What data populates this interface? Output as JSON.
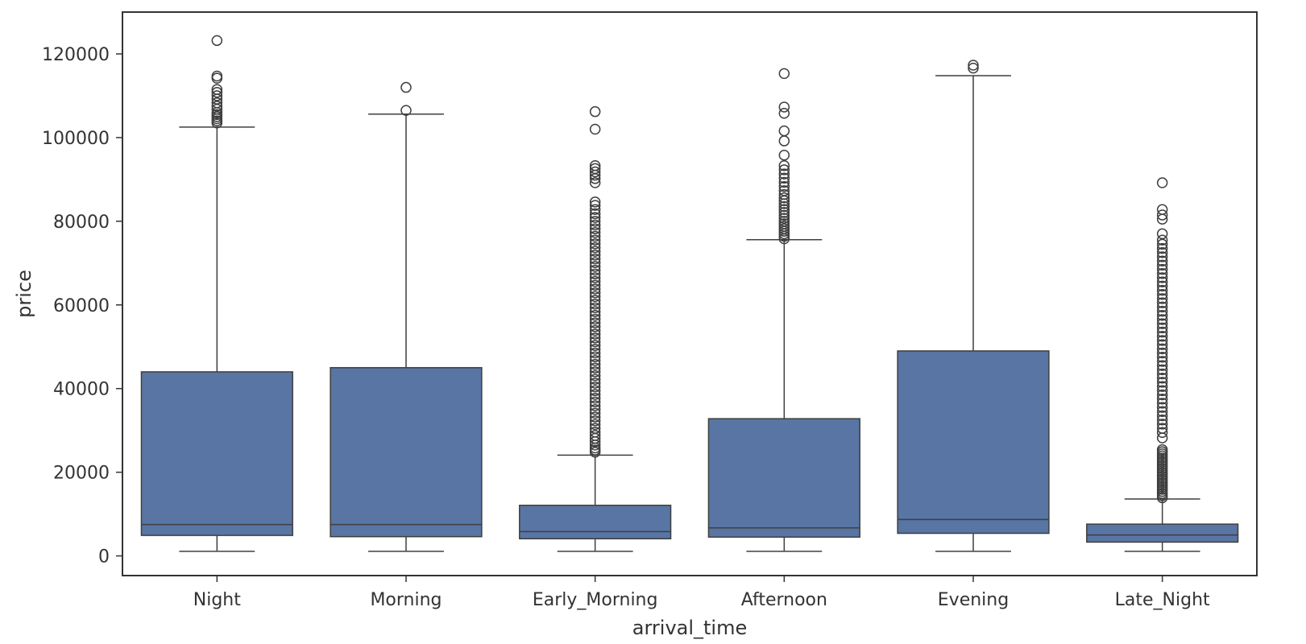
{
  "chart_data": {
    "type": "boxplot",
    "title": "",
    "xlabel": "arrival_time",
    "ylabel": "price",
    "ylim": [
      -4700,
      130000
    ],
    "yticks": [
      0,
      20000,
      40000,
      60000,
      80000,
      100000,
      120000
    ],
    "ytick_labels": [
      "0",
      "20000",
      "40000",
      "60000",
      "80000",
      "100000",
      "120000"
    ],
    "grid": false,
    "legend": "none",
    "colors": {
      "box_fill": "#5875a4",
      "line": "#3f3f3f",
      "frame": "#333333"
    },
    "categories": [
      "Night",
      "Morning",
      "Early_Morning",
      "Afternoon",
      "Evening",
      "Late_Night"
    ],
    "boxes": [
      {
        "category": "Night",
        "whisker_low": 1100,
        "q1": 4900,
        "median": 7500,
        "q3": 44000,
        "whisker_high": 102500,
        "outliers": [
          103500,
          104000,
          104500,
          105000,
          105500,
          106000,
          106800,
          107500,
          108300,
          109200,
          110000,
          110800,
          111500,
          114200,
          114700,
          123200
        ]
      },
      {
        "category": "Morning",
        "whisker_low": 1100,
        "q1": 4600,
        "median": 7500,
        "q3": 45000,
        "whisker_high": 105600,
        "outliers": [
          106500,
          112000
        ]
      },
      {
        "category": "Early_Morning",
        "whisker_low": 1100,
        "q1": 4100,
        "median": 5800,
        "q3": 12100,
        "whisker_high": 24100,
        "outliers": [
          24800,
          25300,
          25800,
          26500,
          27300,
          28100,
          28800,
          29600,
          30500,
          31400,
          32300,
          33200,
          34100,
          35000,
          35900,
          36800,
          37700,
          38600,
          39500,
          40400,
          41300,
          42200,
          43100,
          44000,
          44900,
          45800,
          46700,
          47600,
          48500,
          49400,
          50300,
          51200,
          52100,
          53000,
          53900,
          54800,
          55700,
          56600,
          57500,
          58400,
          59300,
          60200,
          61100,
          62000,
          62900,
          63800,
          64700,
          65600,
          66500,
          67400,
          68300,
          69200,
          70100,
          71000,
          71900,
          72800,
          73700,
          74600,
          75500,
          76400,
          77300,
          78200,
          79100,
          80000,
          80900,
          81800,
          82800,
          83800,
          84600,
          89200,
          90200,
          91000,
          91800,
          92600,
          93300,
          102000,
          106200
        ]
      },
      {
        "category": "Afternoon",
        "whisker_low": 1100,
        "q1": 4500,
        "median": 6700,
        "q3": 32800,
        "whisker_high": 75600,
        "outliers": [
          75800,
          76400,
          77000,
          77600,
          78200,
          78800,
          79400,
          80000,
          80700,
          81400,
          82100,
          82800,
          83500,
          84200,
          84900,
          85600,
          86400,
          87300,
          88300,
          89300,
          90300,
          91300,
          92300,
          93300,
          95800,
          99200,
          101600,
          105800,
          107300,
          115300
        ]
      },
      {
        "category": "Evening",
        "whisker_low": 1100,
        "q1": 5400,
        "median": 8700,
        "q3": 49000,
        "whisker_high": 114800,
        "outliers": [
          116600,
          117300
        ]
      },
      {
        "category": "Late_Night",
        "whisker_low": 1100,
        "q1": 3300,
        "median": 5000,
        "q3": 7600,
        "whisker_high": 13600,
        "outliers": [
          13900,
          14400,
          14900,
          15400,
          15900,
          16400,
          16900,
          17400,
          17900,
          18400,
          18900,
          19400,
          19900,
          20400,
          20900,
          21400,
          21900,
          22400,
          22900,
          23400,
          23900,
          24400,
          24900,
          25400,
          28200,
          29500,
          30500,
          31500,
          32500,
          33500,
          34500,
          35500,
          36500,
          37500,
          38500,
          39500,
          40500,
          41500,
          42500,
          43500,
          44500,
          45500,
          46500,
          47500,
          48500,
          49500,
          50500,
          51500,
          52500,
          53500,
          54500,
          55500,
          56500,
          57500,
          58500,
          59500,
          60500,
          61500,
          62500,
          63500,
          64500,
          65500,
          66500,
          67500,
          68500,
          69500,
          70500,
          71500,
          72500,
          73500,
          74500,
          75500,
          77000,
          80500,
          81500,
          82800,
          89200
        ]
      }
    ]
  }
}
